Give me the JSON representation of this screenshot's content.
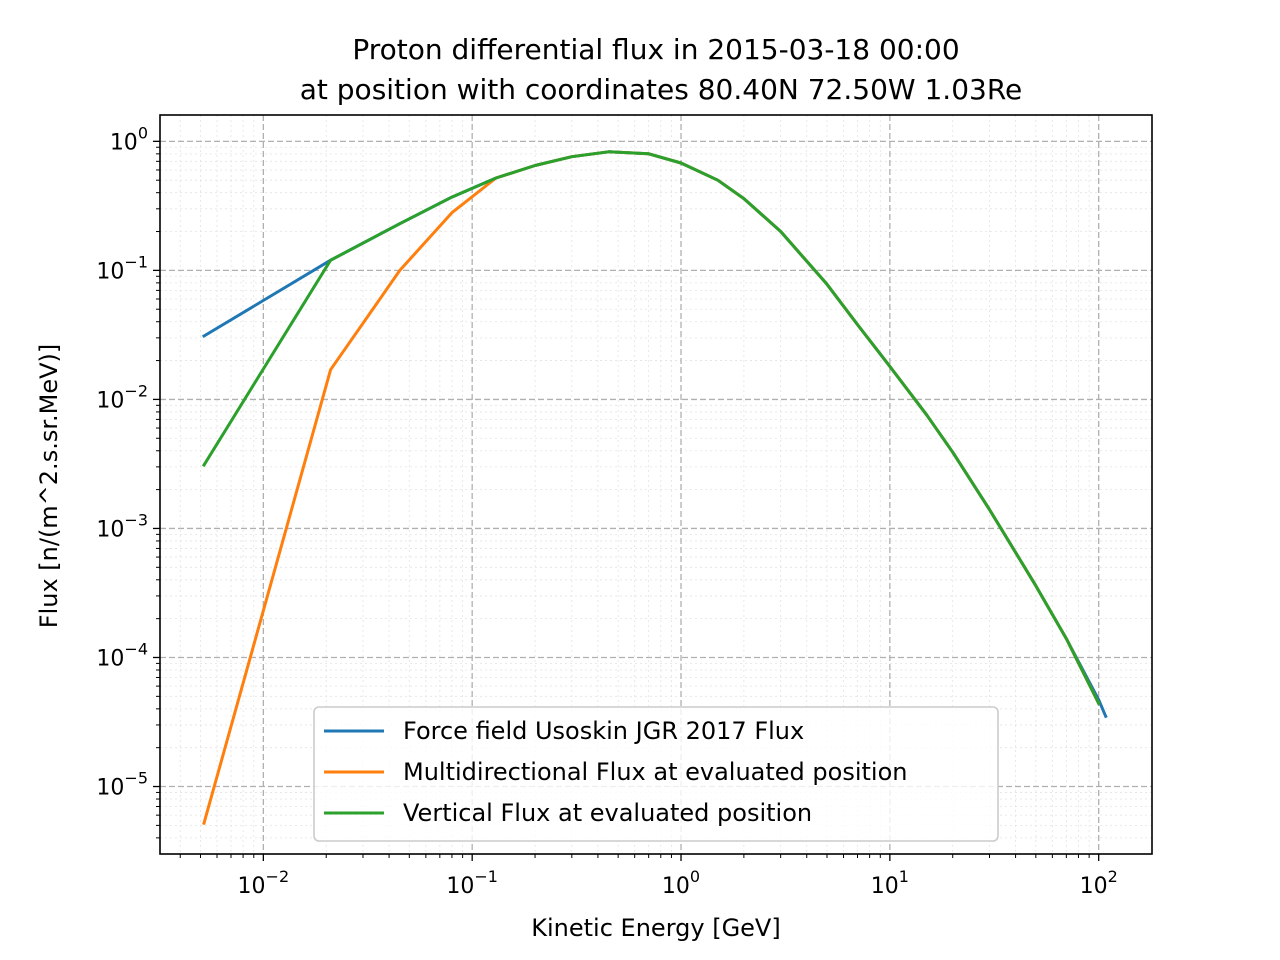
{
  "chart_data": {
    "type": "line",
    "title": [
      "Proton differential flux in 2015-03-18 00:00",
      "at position with coordinates 80.40N 72.50W 1.03Re"
    ],
    "xlabel": "Kinetic Energy [GeV]",
    "ylabel": "Flux [n/(m^2.s.sr.MeV)]",
    "xscale": "log",
    "yscale": "log",
    "xlim": [
      0.0032,
      180
    ],
    "ylim": [
      3e-06,
      1.6
    ],
    "grid": true,
    "legend_position": "lower center",
    "x_ticks": [
      {
        "value": 0.01,
        "base": "10",
        "exp": "−2"
      },
      {
        "value": 0.1,
        "base": "10",
        "exp": "−1"
      },
      {
        "value": 1,
        "base": "10",
        "exp": "0"
      },
      {
        "value": 10,
        "base": "10",
        "exp": "1"
      },
      {
        "value": 100,
        "base": "10",
        "exp": "2"
      }
    ],
    "y_ticks": [
      {
        "value": 1e-05,
        "base": "10",
        "exp": "−5"
      },
      {
        "value": 0.0001,
        "base": "10",
        "exp": "−4"
      },
      {
        "value": 0.001,
        "base": "10",
        "exp": "−3"
      },
      {
        "value": 0.01,
        "base": "10",
        "exp": "−2"
      },
      {
        "value": 0.1,
        "base": "10",
        "exp": "−1"
      },
      {
        "value": 1,
        "base": "10",
        "exp": "0"
      }
    ],
    "series": [
      {
        "name": "Force field Usoskin JGR 2017 Flux",
        "color": "#1f77b4",
        "points": [
          [
            0.0052,
            0.031
          ],
          [
            0.021,
            0.12
          ],
          [
            0.045,
            0.23
          ],
          [
            0.08,
            0.37
          ],
          [
            0.13,
            0.52
          ],
          [
            0.2,
            0.65
          ],
          [
            0.3,
            0.76
          ],
          [
            0.45,
            0.83
          ],
          [
            0.7,
            0.8
          ],
          [
            1.0,
            0.68
          ],
          [
            1.5,
            0.5
          ],
          [
            2.0,
            0.36
          ],
          [
            3.0,
            0.2
          ],
          [
            5.0,
            0.078
          ],
          [
            7.0,
            0.038
          ],
          [
            10.0,
            0.018
          ],
          [
            15.0,
            0.0076
          ],
          [
            20.0,
            0.0039
          ],
          [
            30.0,
            0.0014
          ],
          [
            50.0,
            0.00036
          ],
          [
            70.0,
            0.00014
          ],
          [
            100.0,
            4.7e-05
          ],
          [
            108.0,
            3.5e-05
          ]
        ]
      },
      {
        "name": "Multidirectional Flux at evaluated position",
        "color": "#ff7f0e",
        "points": [
          [
            0.0052,
            5.2e-06
          ],
          [
            0.021,
            0.017
          ],
          [
            0.045,
            0.1
          ],
          [
            0.08,
            0.28
          ],
          [
            0.13,
            0.52
          ],
          [
            0.2,
            0.65
          ],
          [
            0.3,
            0.76
          ],
          [
            0.45,
            0.83
          ],
          [
            0.7,
            0.8
          ],
          [
            1.0,
            0.68
          ],
          [
            1.5,
            0.5
          ],
          [
            2.0,
            0.36
          ],
          [
            3.0,
            0.2
          ],
          [
            5.0,
            0.078
          ],
          [
            7.0,
            0.038
          ],
          [
            10.0,
            0.018
          ],
          [
            15.0,
            0.0076
          ],
          [
            20.0,
            0.0039
          ],
          [
            30.0,
            0.0014
          ],
          [
            50.0,
            0.00036
          ],
          [
            70.0,
            0.00014
          ],
          [
            100.0,
            4.4e-05
          ]
        ]
      },
      {
        "name": "Vertical Flux at evaluated position",
        "color": "#2ca02c",
        "points": [
          [
            0.0052,
            0.0031
          ],
          [
            0.021,
            0.12
          ],
          [
            0.045,
            0.23
          ],
          [
            0.08,
            0.37
          ],
          [
            0.13,
            0.52
          ],
          [
            0.2,
            0.65
          ],
          [
            0.3,
            0.76
          ],
          [
            0.45,
            0.83
          ],
          [
            0.7,
            0.8
          ],
          [
            1.0,
            0.68
          ],
          [
            1.5,
            0.5
          ],
          [
            2.0,
            0.36
          ],
          [
            3.0,
            0.2
          ],
          [
            5.0,
            0.078
          ],
          [
            7.0,
            0.038
          ],
          [
            10.0,
            0.018
          ],
          [
            15.0,
            0.0076
          ],
          [
            20.0,
            0.0039
          ],
          [
            30.0,
            0.0014
          ],
          [
            50.0,
            0.00036
          ],
          [
            70.0,
            0.00014
          ],
          [
            100.0,
            4.4e-05
          ]
        ]
      }
    ]
  }
}
